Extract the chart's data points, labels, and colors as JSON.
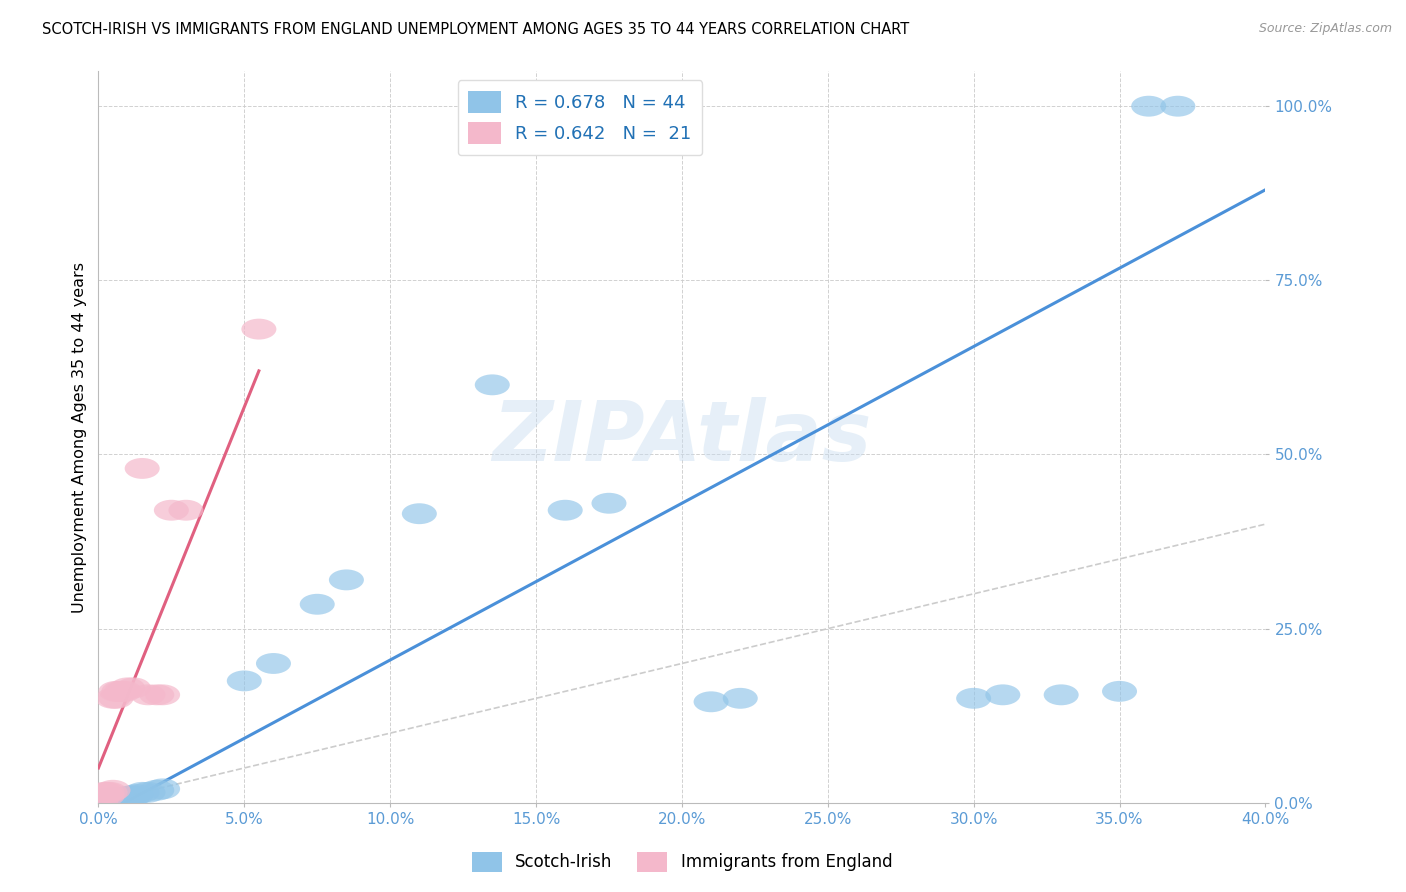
{
  "title": "SCOTCH-IRISH VS IMMIGRANTS FROM ENGLAND UNEMPLOYMENT AMONG AGES 35 TO 44 YEARS CORRELATION CHART",
  "source": "Source: ZipAtlas.com",
  "ylabel": "Unemployment Among Ages 35 to 44 years",
  "legend_bottom_blue": "Scotch-Irish",
  "legend_bottom_pink": "Immigrants from England",
  "blue_color": "#90c4e8",
  "pink_color": "#f4b8cb",
  "blue_line_color": "#4a90d9",
  "pink_line_color": "#e06080",
  "diag_line_color": "#cccccc",
  "watermark": "ZIPAtlas",
  "x_min": 0.0,
  "x_max": 0.4,
  "y_min": 0.0,
  "y_max": 1.05,
  "blue_scatter_x": [
    0.001,
    0.002,
    0.002,
    0.003,
    0.003,
    0.003,
    0.004,
    0.004,
    0.004,
    0.005,
    0.005,
    0.005,
    0.006,
    0.006,
    0.006,
    0.007,
    0.007,
    0.008,
    0.008,
    0.009,
    0.01,
    0.011,
    0.012,
    0.013,
    0.015,
    0.017,
    0.02,
    0.022,
    0.05,
    0.06,
    0.075,
    0.085,
    0.11,
    0.135,
    0.16,
    0.175,
    0.21,
    0.22,
    0.3,
    0.31,
    0.33,
    0.35,
    0.36,
    0.37
  ],
  "blue_scatter_y": [
    0.004,
    0.004,
    0.005,
    0.004,
    0.005,
    0.006,
    0.004,
    0.005,
    0.006,
    0.005,
    0.006,
    0.007,
    0.005,
    0.006,
    0.007,
    0.006,
    0.007,
    0.007,
    0.008,
    0.008,
    0.009,
    0.01,
    0.01,
    0.012,
    0.015,
    0.015,
    0.018,
    0.02,
    0.175,
    0.2,
    0.285,
    0.32,
    0.415,
    0.6,
    0.42,
    0.43,
    0.145,
    0.15,
    0.15,
    0.155,
    0.155,
    0.16,
    1.0,
    1.0
  ],
  "pink_scatter_x": [
    0.001,
    0.002,
    0.003,
    0.003,
    0.004,
    0.005,
    0.005,
    0.006,
    0.006,
    0.007,
    0.008,
    0.009,
    0.01,
    0.012,
    0.015,
    0.017,
    0.02,
    0.022,
    0.025,
    0.03,
    0.055
  ],
  "pink_scatter_y": [
    0.005,
    0.015,
    0.01,
    0.015,
    0.015,
    0.018,
    0.15,
    0.15,
    0.16,
    0.16,
    0.16,
    0.16,
    0.165,
    0.165,
    0.48,
    0.155,
    0.155,
    0.155,
    0.42,
    0.42,
    0.68
  ],
  "blue_line_x0": 0.0,
  "blue_line_y0": -0.02,
  "blue_line_x1": 0.4,
  "blue_line_y1": 0.88,
  "pink_line_x0": 0.0,
  "pink_line_y0": 0.05,
  "pink_line_x1": 0.055,
  "pink_line_y1": 0.62
}
